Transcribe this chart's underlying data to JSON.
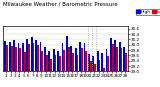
{
  "title": "Milwaukee Weather / Barometric Pressure",
  "legend_high": "High",
  "legend_low": "Low",
  "legend_high_color": "#0000dd",
  "legend_low_color": "#dd0000",
  "background_color": "#ffffff",
  "ylim": [
    29.0,
    30.7
  ],
  "yticks": [
    29.0,
    29.2,
    29.4,
    29.6,
    29.8,
    30.0,
    30.2,
    30.4,
    30.6
  ],
  "ytick_labels": [
    "29.",
    "29.",
    "29.",
    "29.",
    "29.",
    "30.",
    "30.",
    "30.",
    "30."
  ],
  "grid_color": "#cccccc",
  "high_color": "#0000cc",
  "low_color": "#cc0000",
  "days": [
    "1",
    "2",
    "3",
    "4",
    "5",
    "6",
    "7",
    "8",
    "9",
    "10",
    "11",
    "12",
    "13",
    "14",
    "15",
    "16",
    "17",
    "18",
    "19",
    "20",
    "21",
    "22",
    "23",
    "24",
    "25",
    "26",
    "27",
    "28"
  ],
  "highs": [
    30.15,
    30.12,
    30.18,
    30.08,
    30.05,
    30.22,
    30.28,
    30.18,
    30.1,
    29.9,
    29.75,
    29.85,
    29.78,
    30.05,
    30.32,
    29.95,
    29.88,
    30.1,
    30.05,
    29.65,
    29.58,
    29.75,
    29.68,
    29.85,
    30.25,
    30.18,
    30.12,
    29.92
  ],
  "lows": [
    30.0,
    29.95,
    29.92,
    29.88,
    29.72,
    30.02,
    30.08,
    29.98,
    29.78,
    29.62,
    29.48,
    29.62,
    29.58,
    29.82,
    29.92,
    29.68,
    29.62,
    29.88,
    29.78,
    29.38,
    29.28,
    29.42,
    29.12,
    29.58,
    30.02,
    29.92,
    29.88,
    29.68
  ],
  "dotted_lines_before": [
    19,
    20,
    21
  ],
  "title_fontsize": 4.0,
  "tick_fontsize": 3.0,
  "legend_fontsize": 3.2,
  "title_color": "#000000",
  "bar_width": 0.42
}
